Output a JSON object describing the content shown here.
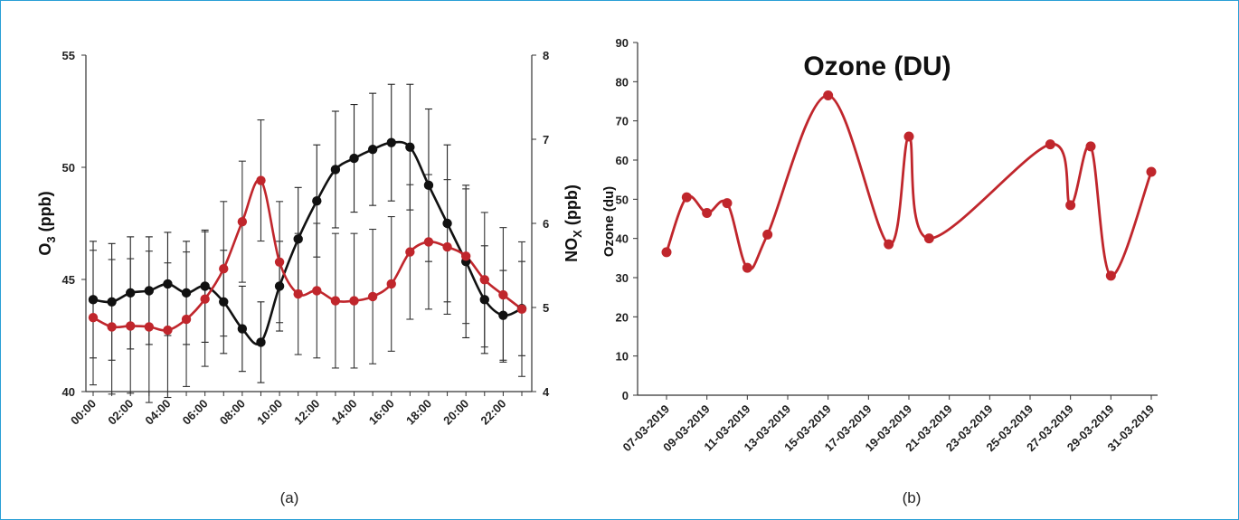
{
  "colors": {
    "black_series": "#111111",
    "red_series": "#c0262c",
    "axis": "#333333",
    "frame": "#2a9fd6"
  },
  "panels": [
    {
      "label": "(a)"
    },
    {
      "label": "(b)"
    }
  ],
  "chart_data": [
    {
      "type": "line",
      "title": "",
      "xlabel": "",
      "ylabel": "O3 (ppb)",
      "ylabel_parts": {
        "main": "O",
        "sub": "3",
        "rest": " (ppb)"
      },
      "y2label": "NOX (ppb)",
      "y2label_parts": {
        "main": "NO",
        "sub": "X",
        "rest": " (ppb)"
      },
      "ylim": [
        40,
        55
      ],
      "y2lim": [
        4,
        8
      ],
      "yticks": [
        40,
        45,
        50,
        55
      ],
      "y2ticks": [
        4,
        5,
        6,
        7,
        8
      ],
      "categories": [
        "00:00",
        "01:00",
        "02:00",
        "03:00",
        "04:00",
        "05:00",
        "06:00",
        "07:00",
        "08:00",
        "09:00",
        "10:00",
        "11:00",
        "12:00",
        "13:00",
        "14:00",
        "15:00",
        "16:00",
        "17:00",
        "18:00",
        "19:00",
        "20:00",
        "21:00",
        "22:00",
        "23:00"
      ],
      "tick_labels": [
        "00:00",
        "",
        "02:00",
        "",
        "04:00",
        "",
        "06:00",
        "",
        "08:00",
        "",
        "10:00",
        "",
        "12:00",
        "",
        "14:00",
        "",
        "16:00",
        "",
        "18:00",
        "",
        "20:00",
        "",
        "22:00",
        ""
      ],
      "grid": false,
      "series": [
        {
          "color": "#111111",
          "axis": "left",
          "values": [
            44.1,
            44.0,
            44.4,
            44.5,
            44.8,
            44.4,
            44.7,
            44.0,
            42.8,
            42.2,
            44.7,
            46.8,
            48.5,
            49.9,
            50.4,
            50.8,
            51.1,
            50.9,
            49.2,
            47.5,
            45.8,
            44.1,
            43.4,
            43.7
          ],
          "error": [
            2.6,
            2.6,
            2.5,
            2.4,
            2.3,
            2.3,
            2.5,
            2.3,
            1.9,
            1.8,
            2.0,
            2.3,
            2.5,
            2.6,
            2.4,
            2.5,
            2.6,
            2.8,
            3.4,
            3.5,
            3.4,
            2.4,
            2.0,
            2.1
          ]
        },
        {
          "color": "#c0262c",
          "axis": "right",
          "values": [
            4.88,
            4.77,
            4.78,
            4.77,
            4.73,
            4.86,
            5.1,
            5.46,
            6.02,
            6.51,
            5.54,
            5.16,
            5.2,
            5.08,
            5.08,
            5.13,
            5.28,
            5.66,
            5.78,
            5.72,
            5.61,
            5.33,
            5.15,
            4.98
          ],
          "error": [
            0.8,
            0.8,
            0.8,
            0.9,
            0.8,
            0.8,
            0.8,
            0.8,
            0.72,
            0.72,
            0.72,
            0.72,
            0.8,
            0.8,
            0.8,
            0.8,
            0.8,
            0.8,
            0.8,
            0.8,
            0.8,
            0.8,
            0.8,
            0.8
          ]
        }
      ]
    },
    {
      "type": "line",
      "title": "Ozone (DU)",
      "xlabel": "",
      "ylabel": "Ozone (du)",
      "ylim": [
        0,
        90
      ],
      "yticks": [
        0,
        10,
        20,
        30,
        40,
        50,
        60,
        70,
        80,
        90
      ],
      "xlim": [
        "07-03-2019",
        "31-03-2019"
      ],
      "tick_labels": [
        "07-03-2019",
        "09-03-2019",
        "11-03-2019",
        "13-03-2019",
        "15-03-2019",
        "17-03-2019",
        "19-03-2019",
        "21-03-2019",
        "23-03-2019",
        "25-03-2019",
        "27-03-2019",
        "29-03-2019",
        "31-03-2019"
      ],
      "grid": false,
      "series": [
        {
          "color": "#c0262c",
          "x": [
            "07-03-2019",
            "08-03-2019",
            "09-03-2019",
            "10-03-2019",
            "11-03-2019",
            "12-03-2019",
            "15-03-2019",
            "18-03-2019",
            "19-03-2019",
            "20-03-2019",
            "26-03-2019",
            "27-03-2019",
            "28-03-2019",
            "29-03-2019",
            "31-03-2019"
          ],
          "values": [
            36.5,
            50.5,
            46.5,
            49,
            32.5,
            41,
            76.5,
            38.5,
            66,
            40,
            64,
            48.5,
            63.5,
            30.5,
            57
          ]
        }
      ]
    }
  ]
}
